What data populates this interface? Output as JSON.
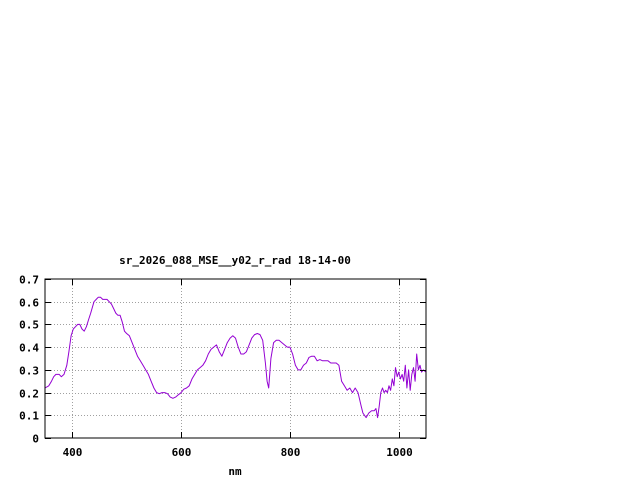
{
  "chart_data": {
    "type": "line",
    "title": "sr_2026_088_MSE__y02_r_rad 18-14-00",
    "xlabel": "nm",
    "ylabel": "",
    "xlim": [
      350,
      1050
    ],
    "ylim": [
      0,
      0.7
    ],
    "xticks": [
      400,
      600,
      800,
      1000
    ],
    "yticks": [
      0,
      0.1,
      0.2,
      0.3,
      0.4,
      0.5,
      0.6,
      0.7
    ],
    "xtick_labels": [
      "400",
      "600",
      "800",
      "1000"
    ],
    "ytick_labels": [
      "0",
      "0.1",
      "0.2",
      "0.3",
      "0.4",
      "0.5",
      "0.6",
      "0.7"
    ],
    "grid": true,
    "series": [
      {
        "color": "#9400d3",
        "x": [
          350,
          357,
          362,
          366,
          370,
          376,
          380,
          385,
          390,
          394,
          398,
          402,
          406,
          410,
          414,
          418,
          422,
          426,
          430,
          434,
          440,
          444,
          448,
          452,
          456,
          460,
          464,
          468,
          472,
          476,
          480,
          484,
          488,
          492,
          496,
          500,
          505,
          510,
          515,
          520,
          525,
          530,
          535,
          540,
          545,
          550,
          555,
          560,
          565,
          570,
          575,
          580,
          585,
          590,
          595,
          600,
          605,
          610,
          615,
          620,
          625,
          630,
          635,
          640,
          645,
          650,
          655,
          660,
          665,
          670,
          675,
          680,
          685,
          690,
          695,
          700,
          705,
          710,
          715,
          720,
          725,
          730,
          735,
          740,
          745,
          750,
          755,
          758,
          761,
          765,
          770,
          775,
          780,
          785,
          790,
          795,
          800,
          805,
          810,
          815,
          820,
          825,
          830,
          835,
          840,
          845,
          850,
          855,
          860,
          865,
          870,
          875,
          880,
          885,
          890,
          895,
          900,
          905,
          910,
          915,
          920,
          925,
          928,
          931,
          934,
          937,
          940,
          945,
          950,
          955,
          958,
          961,
          964,
          967,
          970,
          973,
          976,
          979,
          982,
          985,
          988,
          991,
          994,
          997,
          1000,
          1003,
          1006,
          1009,
          1012,
          1015,
          1018,
          1021,
          1024,
          1027,
          1030,
          1033,
          1036,
          1039,
          1042,
          1045,
          1050
        ],
        "y": [
          0.22,
          0.23,
          0.25,
          0.27,
          0.28,
          0.28,
          0.27,
          0.28,
          0.32,
          0.38,
          0.45,
          0.48,
          0.49,
          0.5,
          0.5,
          0.48,
          0.47,
          0.49,
          0.52,
          0.55,
          0.6,
          0.61,
          0.62,
          0.62,
          0.61,
          0.61,
          0.61,
          0.6,
          0.59,
          0.57,
          0.55,
          0.54,
          0.54,
          0.51,
          0.47,
          0.46,
          0.45,
          0.42,
          0.39,
          0.36,
          0.34,
          0.32,
          0.3,
          0.28,
          0.25,
          0.22,
          0.2,
          0.195,
          0.2,
          0.2,
          0.195,
          0.18,
          0.175,
          0.18,
          0.19,
          0.2,
          0.215,
          0.22,
          0.23,
          0.26,
          0.28,
          0.3,
          0.31,
          0.32,
          0.34,
          0.37,
          0.39,
          0.4,
          0.41,
          0.38,
          0.36,
          0.39,
          0.42,
          0.44,
          0.45,
          0.44,
          0.4,
          0.37,
          0.37,
          0.38,
          0.41,
          0.44,
          0.455,
          0.46,
          0.455,
          0.43,
          0.33,
          0.25,
          0.22,
          0.35,
          0.42,
          0.43,
          0.43,
          0.42,
          0.41,
          0.4,
          0.4,
          0.37,
          0.32,
          0.3,
          0.3,
          0.32,
          0.33,
          0.355,
          0.36,
          0.36,
          0.34,
          0.345,
          0.34,
          0.34,
          0.34,
          0.33,
          0.33,
          0.33,
          0.32,
          0.25,
          0.23,
          0.21,
          0.22,
          0.2,
          0.22,
          0.2,
          0.17,
          0.14,
          0.11,
          0.1,
          0.09,
          0.11,
          0.12,
          0.12,
          0.13,
          0.09,
          0.14,
          0.2,
          0.22,
          0.2,
          0.21,
          0.2,
          0.23,
          0.21,
          0.26,
          0.23,
          0.31,
          0.27,
          0.29,
          0.26,
          0.28,
          0.25,
          0.32,
          0.22,
          0.3,
          0.21,
          0.28,
          0.31,
          0.25,
          0.37,
          0.3,
          0.32,
          0.29,
          0.3,
          0.29
        ]
      }
    ]
  }
}
